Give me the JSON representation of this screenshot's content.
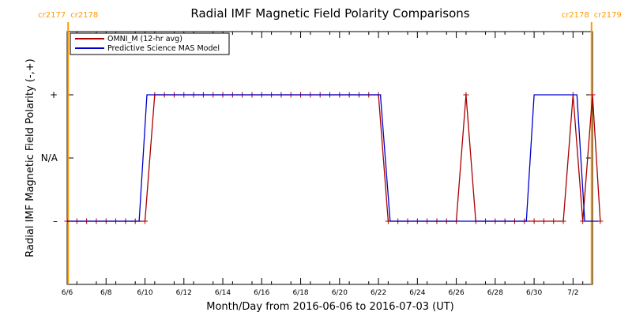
{
  "chart_data": {
    "type": "line",
    "title": "Radial IMF Magnetic Field Polarity Comparisons",
    "xlabel": "Month/Day from 2016-06-06 to 2016-07-03 (UT)",
    "ylabel": "Radial IMF Magnetic Field Polarity (-,+)",
    "xlim": [
      0,
      27
    ],
    "ylim": [
      -2,
      2
    ],
    "x_unit": "days since 2016-06-06",
    "x_ticks": [
      {
        "x": 0,
        "label": "6/6"
      },
      {
        "x": 2,
        "label": "6/8"
      },
      {
        "x": 4,
        "label": "6/10"
      },
      {
        "x": 6,
        "label": "6/12"
      },
      {
        "x": 8,
        "label": "6/14"
      },
      {
        "x": 10,
        "label": "6/16"
      },
      {
        "x": 12,
        "label": "6/18"
      },
      {
        "x": 14,
        "label": "6/20"
      },
      {
        "x": 16,
        "label": "6/22"
      },
      {
        "x": 18,
        "label": "6/24"
      },
      {
        "x": 20,
        "label": "6/26"
      },
      {
        "x": 22,
        "label": "6/28"
      },
      {
        "x": 24,
        "label": "6/30"
      },
      {
        "x": 26,
        "label": "7/2"
      }
    ],
    "y_ticks": [
      {
        "y": 1,
        "label": "+"
      },
      {
        "y": 0,
        "label": "N/A"
      },
      {
        "y": -1,
        "label": "–"
      }
    ],
    "carrington_markers": [
      {
        "x": 0.05,
        "left_label": "cr2177",
        "right_label": "cr2178",
        "color": "#ff9900"
      },
      {
        "x": 26.95,
        "left_label": "cr2178",
        "right_label": "cr2179",
        "color": "#ff9900"
      }
    ],
    "legend": {
      "placement": "top-left",
      "entries": [
        {
          "name": "OMNI_M (12-hr avg)",
          "color": "#aa0000"
        },
        {
          "name": "Predictive Science MAS Model",
          "color": "#0000cc"
        }
      ]
    },
    "series": [
      {
        "name": "OMNI_M (12-hr avg)",
        "color": "#aa0000",
        "markers": "plus",
        "points": [
          [
            0,
            -1
          ],
          [
            0.5,
            -1
          ],
          [
            1,
            -1
          ],
          [
            1.5,
            -1
          ],
          [
            2,
            -1
          ],
          [
            2.5,
            -1
          ],
          [
            3,
            -1
          ],
          [
            3.5,
            -1
          ],
          [
            4,
            -1
          ],
          [
            4.5,
            1
          ],
          [
            5,
            1
          ],
          [
            5.5,
            1
          ],
          [
            6,
            1
          ],
          [
            6.5,
            1
          ],
          [
            7,
            1
          ],
          [
            7.5,
            1
          ],
          [
            8,
            1
          ],
          [
            8.5,
            1
          ],
          [
            9,
            1
          ],
          [
            9.5,
            1
          ],
          [
            10,
            1
          ],
          [
            10.5,
            1
          ],
          [
            11,
            1
          ],
          [
            11.5,
            1
          ],
          [
            12,
            1
          ],
          [
            12.5,
            1
          ],
          [
            13,
            1
          ],
          [
            13.5,
            1
          ],
          [
            14,
            1
          ],
          [
            14.5,
            1
          ],
          [
            15,
            1
          ],
          [
            15.5,
            1
          ],
          [
            16,
            1
          ],
          [
            16.5,
            -1
          ],
          [
            17,
            -1
          ],
          [
            17.5,
            -1
          ],
          [
            18,
            -1
          ],
          [
            18.5,
            -1
          ],
          [
            19,
            -1
          ],
          [
            19.5,
            -1
          ],
          [
            20,
            -1
          ],
          [
            20.5,
            1
          ],
          [
            21,
            -1
          ],
          [
            21.5,
            -1
          ],
          [
            22,
            -1
          ],
          [
            22.5,
            -1
          ],
          [
            23,
            -1
          ],
          [
            23.5,
            -1
          ],
          [
            24,
            -1
          ],
          [
            24.5,
            -1
          ],
          [
            25,
            -1
          ],
          [
            25.5,
            -1
          ],
          [
            26,
            1
          ],
          [
            26.5,
            -1
          ],
          [
            27,
            1
          ],
          [
            27.5,
            -1
          ]
        ]
      },
      {
        "name": "Predictive Science MAS Model",
        "color": "#0000cc",
        "markers": "none",
        "points": [
          [
            0,
            -1
          ],
          [
            3.7,
            -1
          ],
          [
            4.1,
            1
          ],
          [
            16.1,
            1
          ],
          [
            16.6,
            -1
          ],
          [
            23.6,
            -1
          ],
          [
            24.0,
            1
          ],
          [
            26.2,
            1
          ],
          [
            26.6,
            -1
          ],
          [
            27.3,
            -1
          ]
        ]
      }
    ]
  }
}
